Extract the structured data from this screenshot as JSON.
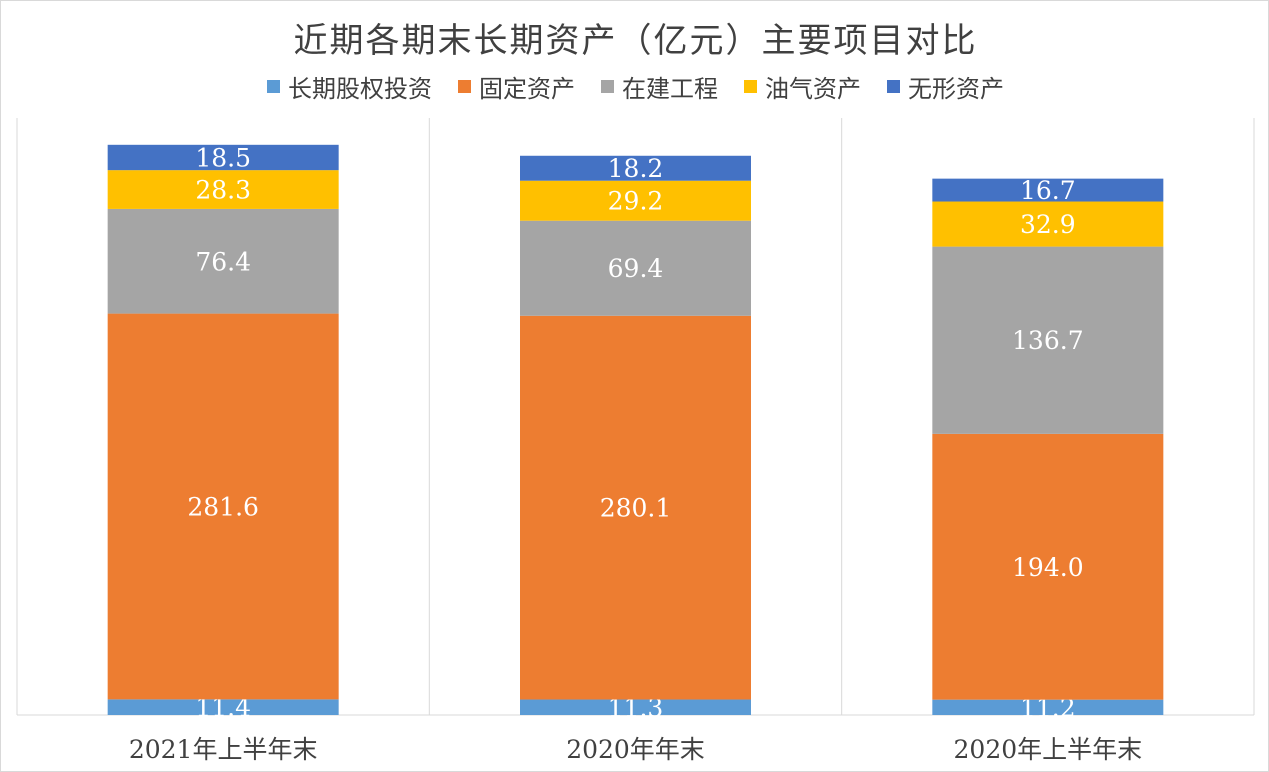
{
  "chart_data": {
    "type": "bar",
    "stacked": true,
    "title": "近期各期末长期资产（亿元）主要项目对比",
    "categories": [
      "2021年上半年末",
      "2020年年末",
      "2020年上半年末"
    ],
    "series": [
      {
        "name": "长期股权投资",
        "color": "#5b9bd5",
        "values": [
          11.4,
          11.3,
          11.2
        ]
      },
      {
        "name": "固定资产",
        "color": "#ed7d31",
        "values": [
          281.6,
          280.1,
          194.0
        ]
      },
      {
        "name": "在建工程",
        "color": "#a5a5a5",
        "values": [
          76.4,
          69.4,
          136.7
        ]
      },
      {
        "name": "油气资产",
        "color": "#ffc000",
        "values": [
          28.3,
          29.2,
          32.9
        ]
      },
      {
        "name": "无形资产",
        "color": "#4472c4",
        "values": [
          18.5,
          18.2,
          16.7
        ]
      }
    ],
    "data_label_format": "0.0",
    "legend_position": "top",
    "grid": false,
    "xlabel": "",
    "ylabel": ""
  }
}
